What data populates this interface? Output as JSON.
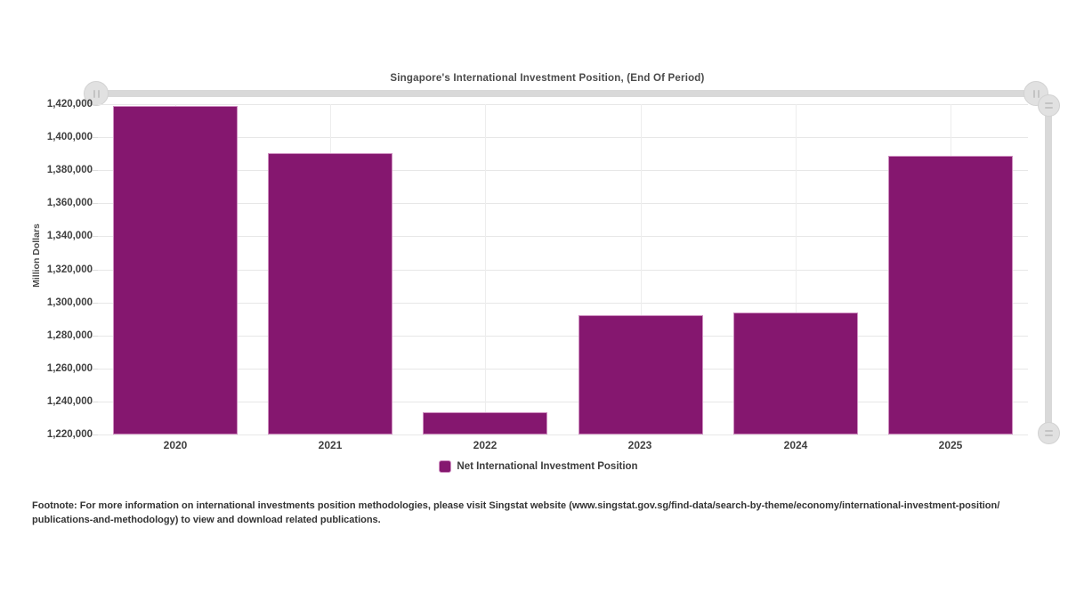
{
  "chart": {
    "legend_label": "Net International Investment Position",
    "footnote": {
      "line1": "Footnote: For more information on international investments position methodologies, please visit Singstat website (www.singstat.gov.sg/find-data/search-by-theme/economy/international-investment-position/",
      "line2": "publications-and-methodology) to view and download related publications."
    }
  },
  "chart_data": {
    "type": "bar",
    "title": "Singapore's International Investment Position, (End Of Period)",
    "categories": [
      "2020",
      "2021",
      "2022",
      "2023",
      "2024",
      "2025"
    ],
    "series": [
      {
        "name": "Net International Investment Position",
        "values": [
          1419000,
          1390500,
          1233500,
          1292500,
          1294000,
          1389000
        ]
      }
    ],
    "xlabel": "",
    "ylabel": "Million Dollars",
    "ylim": [
      1220000,
      1420000
    ],
    "ytick_step": 20000,
    "grid": true,
    "legend_position": "bottom"
  },
  "sliders": {
    "horizontal": {
      "left_handle_icon": "pause-grip-icon",
      "right_handle_icon": "pause-grip-icon"
    },
    "vertical": {
      "top_handle_icon": "lines-grip-icon",
      "bottom_handle_icon": "lines-grip-icon"
    }
  },
  "colors": {
    "bar_fill": "#85176F",
    "bar_border": "#CE8EC0",
    "grid_line": "#E7E7E7",
    "grid_line_vertical": "#EDEDED",
    "axis_text": "#404040",
    "slider_track": "#D9D9D9",
    "slider_handle": "#E1E1E1",
    "slider_grip": "#C4C4C4",
    "background": "#FFFFFF"
  }
}
